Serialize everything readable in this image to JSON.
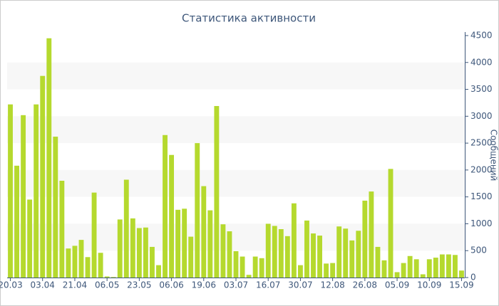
{
  "chart_data": {
    "type": "bar",
    "title": "Статистика активности",
    "y_axis_label": "Сообщений",
    "categories": [
      "20.03",
      null,
      null,
      null,
      null,
      "03.04",
      null,
      null,
      null,
      null,
      "21.04",
      null,
      null,
      null,
      null,
      "06.05",
      null,
      null,
      null,
      null,
      "23.05",
      null,
      null,
      null,
      null,
      "06.06",
      null,
      null,
      null,
      null,
      "19.06",
      null,
      null,
      null,
      null,
      "03.07",
      null,
      null,
      null,
      null,
      "16.07",
      null,
      null,
      null,
      null,
      "30.07",
      null,
      null,
      null,
      null,
      "12.08",
      null,
      null,
      null,
      null,
      "26.08",
      null,
      null,
      null,
      null,
      "05.09",
      null,
      null,
      null,
      null,
      "10.09",
      null,
      null,
      null,
      null,
      "15.09"
    ],
    "values": [
      3220,
      2080,
      3020,
      1450,
      3220,
      3750,
      4450,
      2620,
      1800,
      540,
      590,
      700,
      380,
      1580,
      460,
      20,
      10,
      1080,
      1820,
      1100,
      920,
      930,
      570,
      230,
      2650,
      2280,
      1260,
      1280,
      760,
      2500,
      1700,
      1250,
      3190,
      990,
      860,
      490,
      390,
      50,
      390,
      360,
      1000,
      960,
      900,
      770,
      1380,
      230,
      1060,
      820,
      780,
      260,
      270,
      950,
      910,
      690,
      870,
      1430,
      1600,
      570,
      320,
      2020,
      100,
      270,
      400,
      340,
      60,
      340,
      370,
      430,
      430,
      420,
      130
    ],
    "color": "#b5d92e",
    "ylim": [
      0,
      4500
    ],
    "yticks": [
      0,
      500,
      1000,
      1500,
      2000,
      2500,
      3000,
      3500,
      4000,
      4500
    ],
    "y_axis_side": "right",
    "grid": true
  }
}
